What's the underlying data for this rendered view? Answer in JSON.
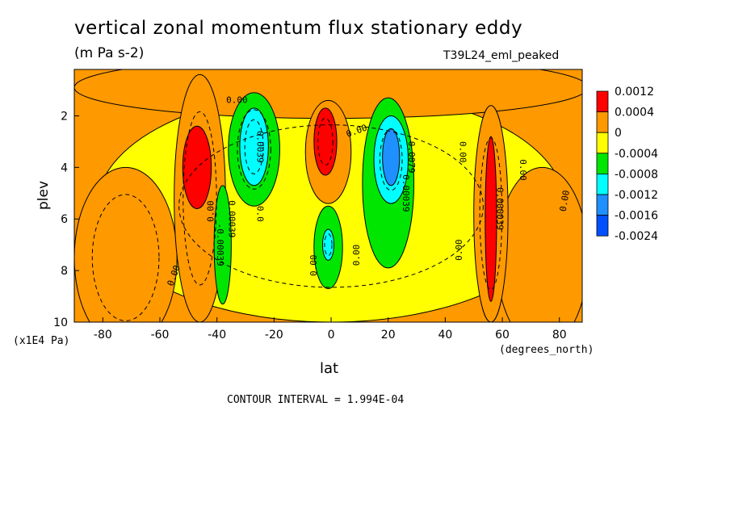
{
  "chart_data": {
    "type": "heatmap",
    "title": "vertical zonal momentum flux stationary eddy",
    "units": "(m Pa s-2)",
    "dataset": "T39L24_eml_peaked",
    "xlabel": "lat",
    "x_unit": "(degrees_north)",
    "ylabel": "plev",
    "y_unit": "(x1E4 Pa)",
    "contour_interval": "CONTOUR INTERVAL = 1.994E-04",
    "xlim": [
      -90,
      88
    ],
    "ylim": [
      10,
      0.2
    ],
    "x_ticks": [
      -80,
      -60,
      -40,
      -20,
      0,
      20,
      40,
      60,
      80
    ],
    "y_ticks": [
      2,
      4,
      6,
      8,
      10
    ],
    "colorbar": {
      "labels": [
        "0.0012",
        "0.0004",
        "0",
        "-0.0004",
        "-0.0008",
        "-0.0012",
        "-0.0016",
        "-0.0024"
      ],
      "colors": [
        "#ff0000",
        "#ff9900",
        "#ffff00",
        "#00e600",
        "#00ffff",
        "#1e90ff",
        "#0050ff"
      ]
    },
    "background_color": "#ff9900",
    "regions": [
      {
        "name": "yellow-main",
        "color": "#ffff00",
        "cx": 0,
        "cy": 5.5,
        "rx": 82,
        "ry": 4.5
      },
      {
        "name": "orange-top",
        "color": "#ff9900",
        "cx": 0,
        "cy": 0.9,
        "rx": 90,
        "ry": 1.2
      },
      {
        "name": "orange-lower-left",
        "color": "#ff9900",
        "cx": -72,
        "cy": 7.5,
        "rx": 18,
        "ry": 3.5
      },
      {
        "name": "orange-lower-right",
        "color": "#ff9900",
        "cx": 74,
        "cy": 7.5,
        "rx": 16,
        "ry": 3.5
      },
      {
        "name": "orange-col-left",
        "color": "#ff9900",
        "cx": -46,
        "cy": 5.2,
        "rx": 9,
        "ry": 4.8
      },
      {
        "name": "red-left",
        "color": "#ff0000",
        "cx": -47,
        "cy": 4.0,
        "rx": 5,
        "ry": 1.6
      },
      {
        "name": "green-left-upper",
        "color": "#00e600",
        "cx": -27,
        "cy": 3.3,
        "rx": 9,
        "ry": 2.2
      },
      {
        "name": "green-left-lower",
        "color": "#00e600",
        "cx": -38,
        "cy": 7.0,
        "rx": 3,
        "ry": 2.3
      },
      {
        "name": "cyan-left",
        "color": "#00ffff",
        "cx": -27,
        "cy": 3.2,
        "rx": 5,
        "ry": 1.5
      },
      {
        "name": "orange-col-center",
        "color": "#ff9900",
        "cx": -1,
        "cy": 3.4,
        "rx": 8,
        "ry": 2.0
      },
      {
        "name": "red-center",
        "color": "#ff0000",
        "cx": -2,
        "cy": 3.0,
        "rx": 4,
        "ry": 1.3
      },
      {
        "name": "green-center",
        "color": "#00e600",
        "cx": -1,
        "cy": 7.1,
        "rx": 5,
        "ry": 1.6
      },
      {
        "name": "cyan-center",
        "color": "#00ffff",
        "cx": -1,
        "cy": 7.0,
        "rx": 2,
        "ry": 0.6
      },
      {
        "name": "green-right",
        "color": "#00e600",
        "cx": 20,
        "cy": 4.6,
        "rx": 9,
        "ry": 3.3
      },
      {
        "name": "cyan-right",
        "color": "#00ffff",
        "cx": 21,
        "cy": 3.7,
        "rx": 6,
        "ry": 1.7
      },
      {
        "name": "blue-right",
        "color": "#1e90ff",
        "cx": 21,
        "cy": 3.6,
        "rx": 3,
        "ry": 1.1
      },
      {
        "name": "orange-col-right",
        "color": "#ff9900",
        "cx": 56,
        "cy": 5.8,
        "rx": 6,
        "ry": 4.2
      },
      {
        "name": "red-right",
        "color": "#ff0000",
        "cx": 56,
        "cy": 6.0,
        "rx": 2,
        "ry": 3.2
      }
    ],
    "contour_labels": [
      {
        "text": "0.00",
        "lat": -55,
        "plev": 8.2,
        "rot": -70
      },
      {
        "text": "0.00",
        "lat": -33,
        "plev": 1.4,
        "rot": 0
      },
      {
        "text": "0.0039",
        "lat": -25,
        "plev": 3.2,
        "rot": 90
      },
      {
        "text": "0.00",
        "lat": -42,
        "plev": 5.7,
        "rot": -90
      },
      {
        "text": "0.00039",
        "lat": -35,
        "plev": 6.0,
        "rot": 90
      },
      {
        "text": "-0.00039",
        "lat": -39,
        "plev": 7.0,
        "rot": 90
      },
      {
        "text": "0.0",
        "lat": -25,
        "plev": 5.8,
        "rot": 90
      },
      {
        "text": "0.00",
        "lat": -6,
        "plev": 7.8,
        "rot": -90
      },
      {
        "text": "0.00",
        "lat": 9,
        "plev": 2.6,
        "rot": -20
      },
      {
        "text": "0.00",
        "lat": 9,
        "plev": 7.4,
        "rot": -90
      },
      {
        "text": "0.0079",
        "lat": 28,
        "plev": 3.6,
        "rot": 90
      },
      {
        "text": "0.00039",
        "lat": 26,
        "plev": 5.0,
        "rot": 90
      },
      {
        "text": "0.00",
        "lat": 46,
        "plev": 3.4,
        "rot": 90
      },
      {
        "text": "0.00",
        "lat": 45,
        "plev": 7.2,
        "rot": -90
      },
      {
        "text": "0.000039",
        "lat": 59,
        "plev": 5.6,
        "rot": 90
      },
      {
        "text": "0.00",
        "lat": 67,
        "plev": 4.1,
        "rot": 90
      },
      {
        "text": "0.00",
        "lat": 82,
        "plev": 5.3,
        "rot": -80
      }
    ]
  }
}
